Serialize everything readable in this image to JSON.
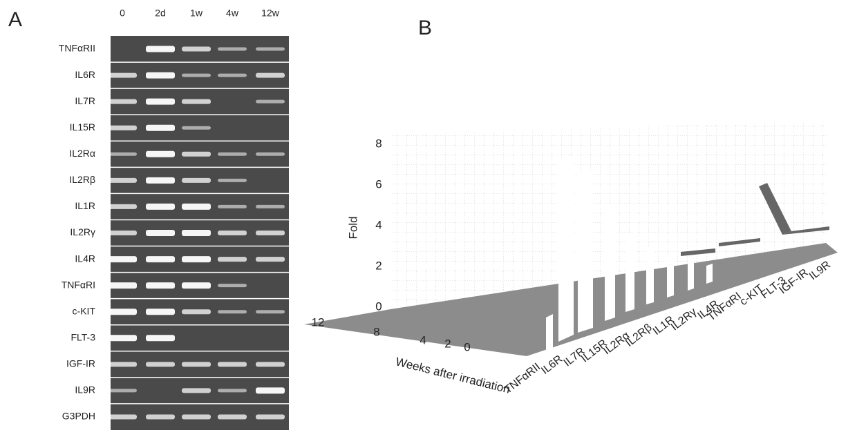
{
  "panel_a": {
    "label": "A",
    "columns": [
      "0",
      "2d",
      "1w",
      "4w",
      "12w"
    ],
    "rows": [
      "TNFαRII",
      "IL6R",
      "IL7R",
      "IL15R",
      "IL2Rα",
      "IL2Rβ",
      "IL1R",
      "IL2Rγ",
      "IL4R",
      "TNFαRI",
      "c-KIT",
      "FLT-3",
      "IGF-IR",
      "IL9R",
      "G3PDH"
    ]
  },
  "panel_b": {
    "label": "B",
    "y_label": "Fold",
    "y_ticks": [
      0,
      2,
      4,
      6,
      8
    ],
    "week_ticks": [
      12,
      8,
      4,
      2,
      0
    ],
    "x_label": "Weeks after irradiation",
    "categories": [
      "TNFαRII",
      "IL6R",
      "IL7R",
      "IL15R",
      "IL2Rα",
      "IL2Rβ",
      "IL1R",
      "IL2Rγ",
      "IL4R",
      "TNFαRI",
      "c-KIT",
      "FLT-3",
      "IGF-IR",
      "IL9R"
    ]
  }
}
